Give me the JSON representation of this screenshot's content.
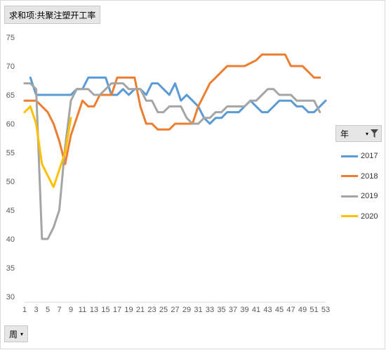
{
  "title_button": {
    "label": "求和项:共聚注塑开工率"
  },
  "legend_button": {
    "label": "年",
    "icons": [
      "dropdown-arrow-icon",
      "filter-icon"
    ]
  },
  "axis_button": {
    "label": "周",
    "icon": "dropdown-arrow-icon"
  },
  "chart_data": {
    "type": "line",
    "x": [
      1,
      2,
      3,
      4,
      5,
      6,
      7,
      8,
      9,
      10,
      11,
      12,
      13,
      14,
      15,
      16,
      17,
      18,
      19,
      20,
      21,
      22,
      23,
      24,
      25,
      26,
      27,
      28,
      29,
      30,
      31,
      32,
      33,
      34,
      35,
      36,
      37,
      38,
      39,
      40,
      41,
      42,
      43,
      44,
      45,
      46,
      47,
      48,
      49,
      50,
      51,
      52,
      53
    ],
    "xticks": [
      1,
      3,
      5,
      7,
      9,
      11,
      13,
      15,
      17,
      19,
      21,
      23,
      25,
      27,
      29,
      31,
      33,
      35,
      37,
      39,
      41,
      43,
      45,
      47,
      49,
      51,
      53
    ],
    "yticks": [
      30,
      35,
      40,
      45,
      50,
      55,
      60,
      65,
      70,
      75
    ],
    "ylim": [
      30,
      75
    ],
    "xlim": [
      1,
      53
    ],
    "grid": false,
    "legend_position": "right",
    "series": [
      {
        "name": "2017",
        "color": "#5b9bd5",
        "values": [
          null,
          68,
          65,
          65,
          65,
          65,
          65,
          65,
          65,
          66,
          66,
          68,
          68,
          68,
          68,
          65,
          65,
          66,
          65,
          66,
          66,
          65,
          67,
          67,
          66,
          65,
          67,
          64,
          65,
          64,
          63,
          61,
          60,
          61,
          61,
          62,
          62,
          62,
          63,
          64,
          63,
          62,
          62,
          63,
          64,
          64,
          64,
          63,
          63,
          62,
          62,
          63,
          64
        ]
      },
      {
        "name": "2018",
        "color": "#ed7d31",
        "values": [
          64,
          64,
          64,
          63,
          62,
          60,
          57,
          53,
          58,
          61,
          64,
          63,
          63,
          65,
          65,
          65,
          68,
          68,
          68,
          68,
          63,
          60,
          60,
          59,
          59,
          59,
          60,
          60,
          60,
          60,
          63,
          65,
          67,
          68,
          69,
          70,
          70,
          70,
          70,
          70.5,
          71,
          72,
          72,
          72,
          72,
          72,
          70,
          70,
          70,
          69,
          68,
          68,
          null
        ]
      },
      {
        "name": "2019",
        "color": "#a5a5a5",
        "values": [
          67,
          67,
          66,
          40,
          40,
          42,
          45,
          56,
          64,
          66,
          66,
          66,
          65,
          65,
          66,
          67,
          67,
          67,
          66,
          66,
          66,
          64,
          64,
          62,
          62,
          63,
          63,
          63,
          61,
          60,
          60,
          61,
          61,
          62,
          62,
          63,
          63,
          63,
          63,
          64,
          64,
          65,
          66,
          66,
          65,
          65,
          65,
          64,
          64,
          64,
          64,
          62,
          null
        ]
      },
      {
        "name": "2020",
        "color": "#ffc000",
        "values": [
          62,
          63,
          60,
          53,
          51,
          49,
          52,
          55,
          61,
          null,
          null,
          null,
          null,
          null,
          null,
          null,
          null,
          null,
          null,
          null,
          null,
          null,
          null,
          null,
          null,
          null,
          null,
          null,
          null,
          null,
          null,
          null,
          null,
          null,
          null,
          null,
          null,
          null,
          null,
          null,
          null,
          null,
          null,
          null,
          null,
          null,
          null,
          null,
          null,
          null,
          null,
          null,
          null
        ]
      }
    ]
  }
}
